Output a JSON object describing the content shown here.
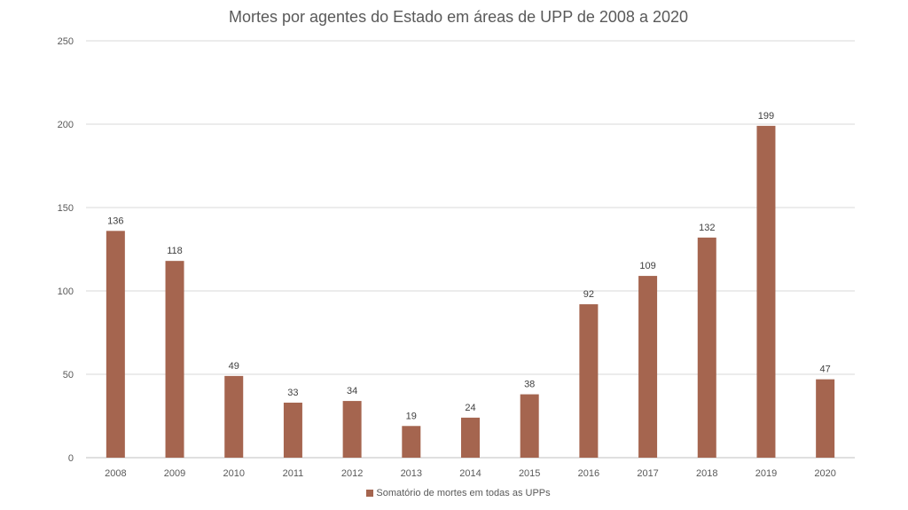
{
  "chart_data": {
    "type": "bar",
    "title": "Mortes por agentes do Estado em áreas de UPP de 2008 a 2020",
    "categories": [
      "2008",
      "2009",
      "2010",
      "2011",
      "2012",
      "2013",
      "2014",
      "2015",
      "2016",
      "2017",
      "2018",
      "2019",
      "2020"
    ],
    "series": [
      {
        "name": "Somatório de mortes em todas as UPPs",
        "values": [
          136,
          118,
          49,
          33,
          34,
          19,
          24,
          38,
          92,
          109,
          132,
          199,
          47
        ],
        "color": "#A5654F"
      }
    ],
    "ylim": [
      0,
      250
    ],
    "yticks": [
      0,
      50,
      100,
      150,
      200,
      250
    ],
    "grid": true,
    "legend_position": "bottom",
    "data_labels": true
  }
}
